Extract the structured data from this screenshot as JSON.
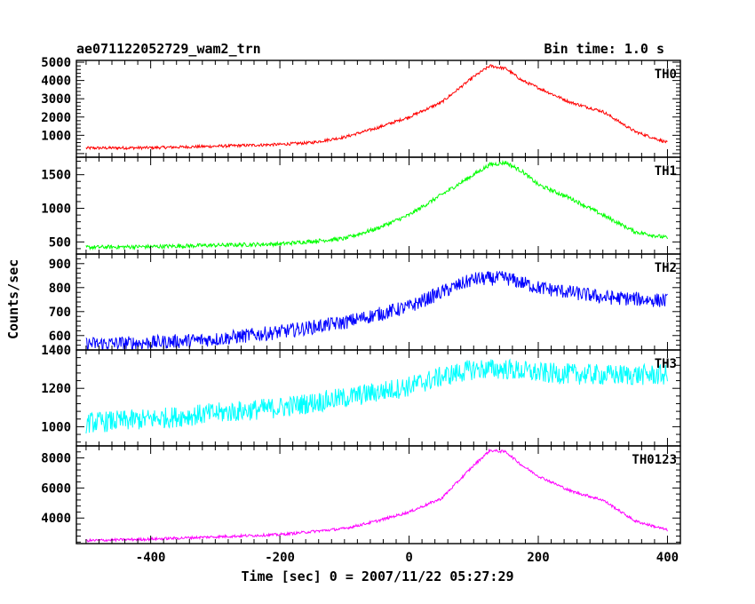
{
  "header": {
    "title": "ae071122052729_wam2_trn",
    "bin_time": "Bin time: 1.0 s"
  },
  "chart_data": {
    "type": "line",
    "xlabel": "Time [sec] 0 = 2007/11/22 05:27:29",
    "ylabel": "Counts/sec",
    "xlim": [
      -515,
      420
    ],
    "xticks": [
      -400,
      -200,
      0,
      200,
      400
    ],
    "grid": false,
    "panels": [
      {
        "name": "TH0",
        "color": "#ff0000",
        "ylim": [
          -200,
          5100
        ],
        "yticks": [
          1000,
          2000,
          3000,
          4000,
          5000
        ],
        "noise": 80,
        "x": [
          -500,
          -400,
          -300,
          -200,
          -150,
          -100,
          -50,
          0,
          50,
          100,
          125,
          150,
          175,
          200,
          250,
          300,
          350,
          400
        ],
        "y": [
          300,
          320,
          400,
          500,
          600,
          900,
          1400,
          2000,
          2800,
          4200,
          4800,
          4650,
          4000,
          3600,
          2800,
          2300,
          1200,
          600
        ]
      },
      {
        "name": "TH1",
        "color": "#00ff00",
        "ylim": [
          320,
          1760
        ],
        "yticks": [
          500,
          1000,
          1500
        ],
        "noise": 30,
        "x": [
          -500,
          -400,
          -300,
          -200,
          -100,
          -50,
          0,
          50,
          100,
          125,
          150,
          175,
          200,
          250,
          300,
          350,
          400
        ],
        "y": [
          420,
          430,
          450,
          470,
          550,
          700,
          900,
          1200,
          1500,
          1650,
          1680,
          1550,
          1350,
          1150,
          900,
          650,
          560
        ]
      },
      {
        "name": "TH2",
        "color": "#0000ff",
        "ylim": [
          540,
          940
        ],
        "yticks": [
          600,
          700,
          800,
          900
        ],
        "noise": 30,
        "x": [
          -500,
          -400,
          -300,
          -200,
          -100,
          0,
          50,
          100,
          150,
          200,
          300,
          400
        ],
        "y": [
          565,
          570,
          585,
          615,
          655,
          720,
          780,
          835,
          840,
          800,
          760,
          745
        ]
      },
      {
        "name": "TH3",
        "color": "#00ffff",
        "ylim": [
          900,
          1400
        ],
        "yticks": [
          1000,
          1200,
          1400
        ],
        "noise": 55,
        "x": [
          -500,
          -400,
          -300,
          -200,
          -100,
          0,
          50,
          100,
          150,
          200,
          300,
          400
        ],
        "y": [
          1020,
          1040,
          1070,
          1100,
          1150,
          1210,
          1260,
          1300,
          1300,
          1280,
          1270,
          1270
        ]
      },
      {
        "name": "TH0123",
        "color": "#ff00ff",
        "ylim": [
          2300,
          8800
        ],
        "yticks": [
          4000,
          6000,
          8000
        ],
        "noise": 90,
        "x": [
          -500,
          -400,
          -300,
          -200,
          -100,
          -50,
          0,
          50,
          100,
          125,
          150,
          175,
          200,
          250,
          300,
          350,
          400
        ],
        "y": [
          2500,
          2600,
          2750,
          2900,
          3300,
          3800,
          4400,
          5300,
          7500,
          8500,
          8400,
          7500,
          6800,
          5800,
          5200,
          3800,
          3200
        ]
      }
    ]
  }
}
